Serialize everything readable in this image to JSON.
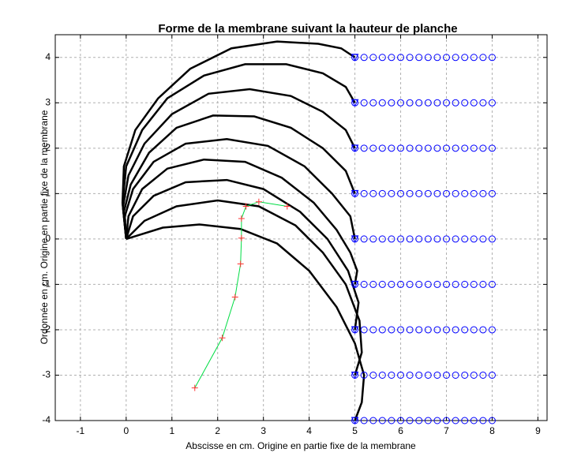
{
  "chart_data": {
    "type": "line",
    "title": "Forme de la membrane suivant la hauteur de planche",
    "x_label": "Abscisse en cm. Origine en partie fixe de la membrane",
    "y_label": "Ordonnée en cm. Origine en partie fixe de la membrane",
    "xlim": [
      -1.55,
      9.2
    ],
    "ylim": [
      -4,
      4.5
    ],
    "xticks": [
      -1,
      0,
      1,
      2,
      3,
      4,
      5,
      6,
      7,
      8,
      9
    ],
    "yticks": [
      -4,
      -3,
      -2,
      -1,
      0,
      1,
      2,
      3,
      4
    ],
    "grid": true,
    "series": [
      {
        "color": "#000000",
        "x": [
          0,
          -0.08,
          -0.05,
          0.2,
          0.7,
          1.4,
          2.3,
          3.3,
          4.2,
          4.7,
          5
        ],
        "values": [
          0,
          0.8,
          1.6,
          2.4,
          3.1,
          3.75,
          4.2,
          4.35,
          4.3,
          4.2,
          4
        ]
      },
      {
        "color": "#000000",
        "x": [
          0,
          -0.08,
          0,
          0.35,
          0.9,
          1.7,
          2.6,
          3.5,
          4.3,
          4.8,
          5
        ],
        "values": [
          0,
          0.8,
          1.6,
          2.4,
          3.1,
          3.6,
          3.85,
          3.85,
          3.65,
          3.35,
          3
        ]
      },
      {
        "color": "#000000",
        "x": [
          0,
          -0.07,
          0.05,
          0.4,
          1.0,
          1.8,
          2.7,
          3.6,
          4.3,
          4.8,
          5
        ],
        "values": [
          0,
          0.7,
          1.4,
          2.1,
          2.75,
          3.2,
          3.3,
          3.15,
          2.8,
          2.4,
          2
        ]
      },
      {
        "color": "#000000",
        "x": [
          0,
          -0.05,
          0.1,
          0.5,
          1.1,
          1.9,
          2.8,
          3.6,
          4.3,
          4.8,
          5
        ],
        "values": [
          0,
          0.6,
          1.2,
          1.9,
          2.45,
          2.72,
          2.7,
          2.45,
          2.0,
          1.5,
          1
        ]
      },
      {
        "color": "#000000",
        "x": [
          0,
          -0.03,
          0.15,
          0.6,
          1.3,
          2.2,
          3.1,
          3.9,
          4.5,
          4.9,
          5
        ],
        "values": [
          0,
          0.5,
          1.1,
          1.7,
          2.1,
          2.2,
          2.05,
          1.6,
          1.0,
          0.5,
          0
        ]
      },
      {
        "color": "#000000",
        "x": [
          0,
          0.05,
          0.35,
          0.9,
          1.7,
          2.6,
          3.4,
          4.1,
          4.6,
          4.9,
          5.05,
          5
        ],
        "values": [
          0,
          0.5,
          1.1,
          1.55,
          1.75,
          1.7,
          1.35,
          0.8,
          0.2,
          -0.3,
          -0.7,
          -1
        ]
      },
      {
        "color": "#000000",
        "x": [
          0,
          0.15,
          0.6,
          1.3,
          2.2,
          3.0,
          3.8,
          4.4,
          4.85,
          5.08,
          5
        ],
        "values": [
          0,
          0.5,
          0.95,
          1.25,
          1.3,
          1.1,
          0.6,
          0,
          -0.7,
          -1.4,
          -2
        ]
      },
      {
        "color": "#000000",
        "x": [
          0,
          0.4,
          1.1,
          2.0,
          2.9,
          3.7,
          4.3,
          4.8,
          5.1,
          5.15,
          5
        ],
        "values": [
          0,
          0.4,
          0.72,
          0.85,
          0.72,
          0.3,
          -0.3,
          -1.0,
          -1.8,
          -2.5,
          -3
        ]
      },
      {
        "color": "#000000",
        "x": [
          0,
          0.8,
          1.6,
          2.5,
          3.3,
          4.0,
          4.6,
          5.0,
          5.2,
          5.15,
          5
        ],
        "values": [
          0,
          0.25,
          0.32,
          0.22,
          -0.1,
          -0.7,
          -1.5,
          -2.3,
          -3.0,
          -3.6,
          -4
        ]
      }
    ],
    "trace": {
      "color": "#00dd44",
      "marker_color": "#ff3333",
      "x": [
        1.5,
        2.1,
        2.38,
        2.5,
        2.52,
        2.52,
        2.62,
        2.9,
        3.52
      ],
      "values": [
        -3.28,
        -2.18,
        -1.28,
        -0.55,
        0.02,
        0.45,
        0.72,
        0.82,
        0.72
      ]
    },
    "markers": {
      "color": "#0000ff",
      "x": [
        5,
        5.2,
        5.4,
        5.6,
        5.8,
        6,
        6.2,
        6.4,
        6.6,
        6.8,
        7,
        7.2,
        7.4,
        7.6,
        7.8,
        8
      ],
      "rows": [
        -4,
        -3,
        -2,
        -1,
        0,
        1,
        2,
        3,
        4
      ]
    }
  }
}
